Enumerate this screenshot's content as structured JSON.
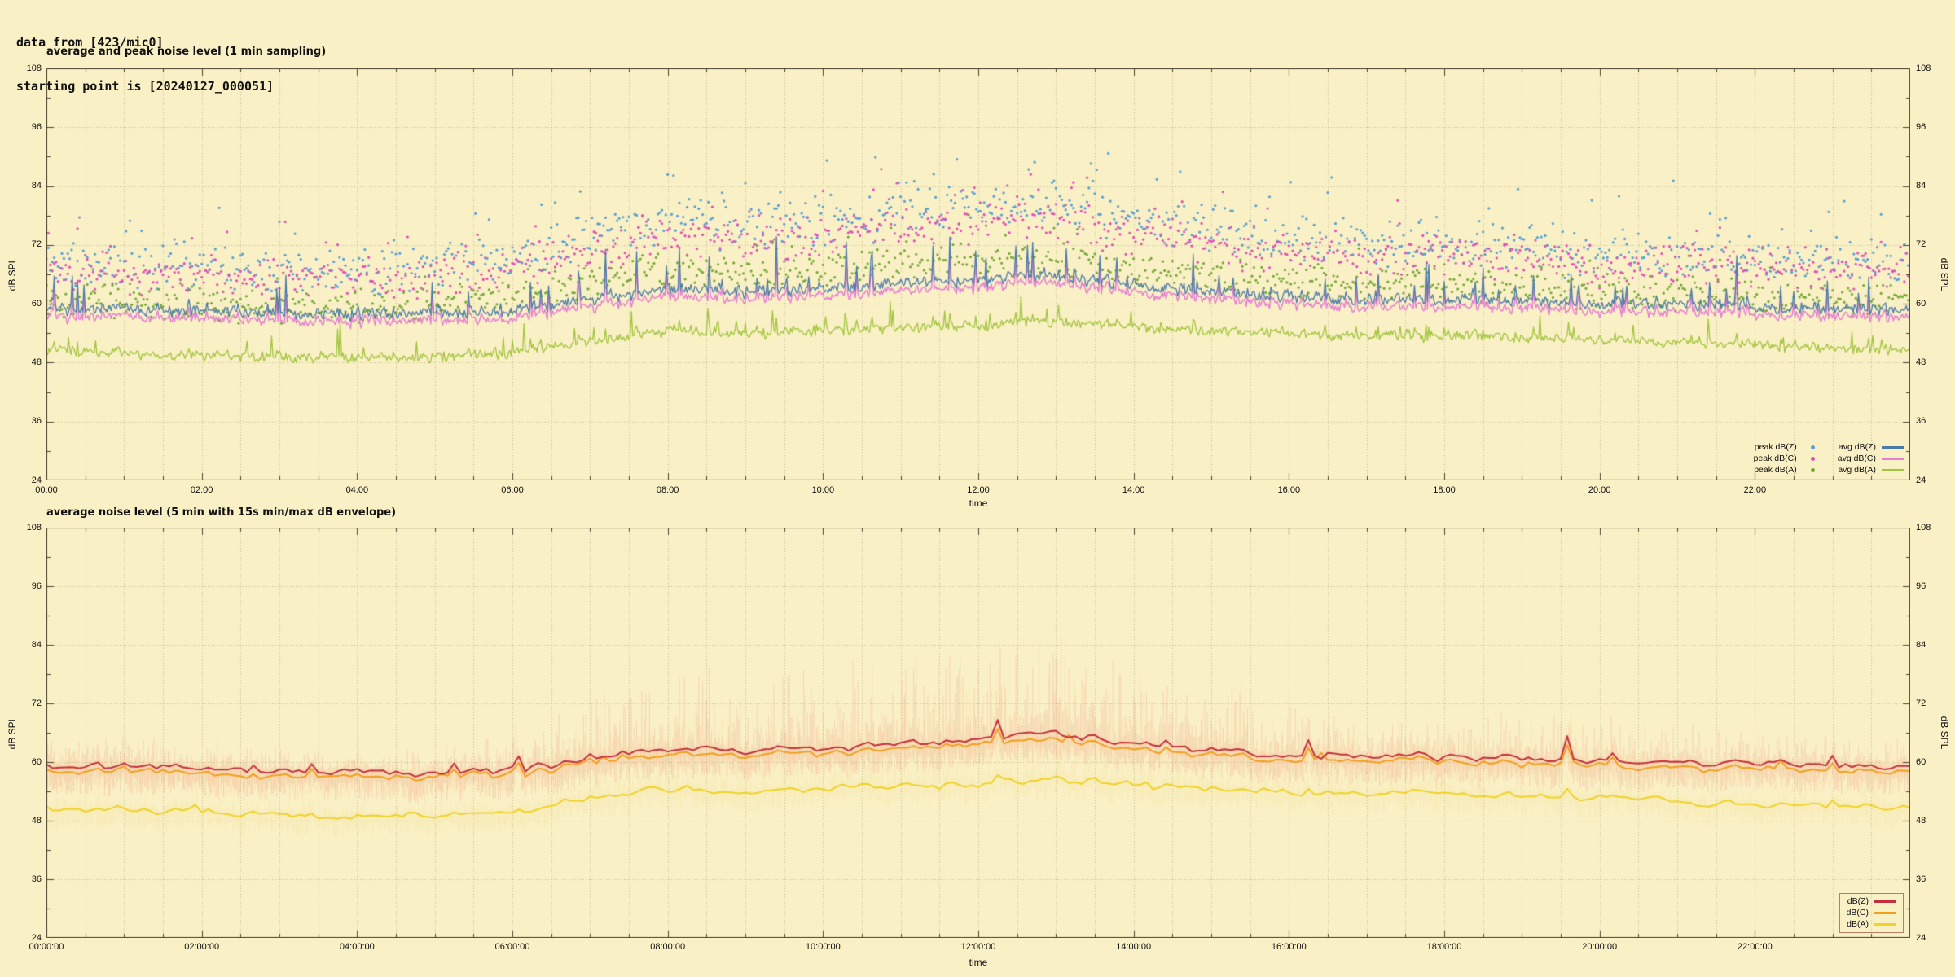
{
  "header": {
    "line1": "data from [423/mic0]",
    "line2": "starting point is [20240127_000051]"
  },
  "colors": {
    "background": "#faf0c6",
    "grid": "#8a7f58",
    "frame": "#4a4430",
    "text": "#111111"
  },
  "chart_data": [
    {
      "type": "line+scatter",
      "title": "average and peak noise level (1 min sampling)",
      "xlabel": "time",
      "ylabel": "dB SPL",
      "ylabel_right": "dB SPL",
      "ylim": [
        24,
        108
      ],
      "yticks": [
        24,
        36,
        48,
        60,
        72,
        84,
        96,
        108
      ],
      "x_range_hours": [
        0,
        24
      ],
      "xtick_hours": [
        0,
        2,
        4,
        6,
        8,
        10,
        12,
        14,
        16,
        18,
        20,
        22
      ],
      "xtick_labels": [
        "00:00",
        "02:00",
        "04:00",
        "06:00",
        "08:00",
        "10:00",
        "12:00",
        "14:00",
        "16:00",
        "18:00",
        "20:00",
        "22:00"
      ],
      "grid_minor_minutes": 30,
      "grid": "dotted",
      "legend_position": "bottom-right",
      "legend_boxed": false,
      "series": [
        {
          "name": "peak dB(Z)",
          "kind": "scatter",
          "color": "#56a0d3",
          "seed": 11,
          "step_min": 1.5,
          "spread": 5.5,
          "spike_p": 0.1,
          "spike_amp": 12,
          "base": [
            69,
            68,
            67.5,
            67,
            67,
            67.5,
            69,
            74,
            77,
            76,
            77,
            78,
            80,
            80,
            77,
            75,
            73,
            72,
            72,
            71,
            70,
            70,
            69.5,
            69,
            69
          ]
        },
        {
          "name": "peak dB(C)",
          "kind": "scatter",
          "color": "#e14fb6",
          "seed": 12,
          "step_min": 1.5,
          "spread": 5,
          "spike_p": 0.08,
          "spike_amp": 10,
          "base": [
            67,
            66,
            65.5,
            65,
            65,
            65.5,
            67,
            71,
            74,
            73,
            74,
            75,
            77,
            77,
            74,
            72,
            70.5,
            70,
            70,
            69,
            68,
            68,
            67.5,
            67,
            67
          ]
        },
        {
          "name": "peak dB(A)",
          "kind": "scatter",
          "color": "#76a837",
          "seed": 13,
          "step_min": 1.5,
          "spread": 4,
          "spike_p": 0.05,
          "spike_amp": 7,
          "base": [
            61,
            60.5,
            60,
            59.5,
            59.5,
            60,
            61,
            64.5,
            67,
            66,
            67,
            68,
            69,
            69,
            67,
            65.5,
            64.5,
            64,
            64,
            63,
            62.5,
            62,
            61.5,
            61,
            61
          ]
        },
        {
          "name": "avg dB(A)",
          "kind": "line",
          "color": "#a0c43c",
          "seed": 23,
          "step_min": 1,
          "ar": 0.3,
          "sigma": 1.2,
          "spike_p": 0.05,
          "spike_amp": 7,
          "follow": "avg dB(Z)",
          "follow_f": 0.25,
          "width": 1.3,
          "base": [
            50.5,
            50,
            49.5,
            49,
            49,
            49,
            50,
            52.5,
            54.5,
            54,
            54.5,
            55,
            55.5,
            56.5,
            55,
            54.5,
            54,
            53.5,
            53.5,
            53,
            52.5,
            52,
            51.5,
            51,
            50.5
          ]
        },
        {
          "name": "avg dB(C)",
          "kind": "line",
          "color": "#e57fd2",
          "seed": 22,
          "step_min": 1,
          "ar": 0.2,
          "sigma": 0.55,
          "spike_p": 0,
          "spike_amp": 0,
          "follow": "avg dB(Z)",
          "follow_f": 0.85,
          "width": 1.5,
          "base": [
            57.5,
            57.5,
            57,
            56.5,
            56.5,
            56.5,
            57,
            59.5,
            61.5,
            61,
            61.5,
            62.5,
            63.5,
            64.5,
            62,
            61,
            60,
            59.5,
            59.5,
            59,
            58.5,
            58.5,
            58,
            57.5,
            57.5
          ]
        },
        {
          "name": "avg dB(Z)",
          "kind": "line",
          "color": "#4a7aa8",
          "seed": 21,
          "step_min": 1,
          "ar": 0.3,
          "sigma": 1.5,
          "spike_p": 0.1,
          "spike_amp": 12,
          "width": 1.3,
          "base": [
            59,
            59,
            58.5,
            58,
            58,
            58,
            58.5,
            61,
            63,
            62.5,
            63,
            64,
            65,
            66,
            63.5,
            62.5,
            61.5,
            61,
            61,
            60.5,
            60,
            60,
            59.5,
            59,
            59
          ]
        }
      ],
      "legend_columns": [
        {
          "entries": [
            {
              "label": "peak dB(Z)",
              "swatch": "dot",
              "color": "#56a0d3"
            },
            {
              "label": "peak dB(C)",
              "swatch": "dot",
              "color": "#e14fb6"
            },
            {
              "label": "peak dB(A)",
              "swatch": "dot",
              "color": "#76a837"
            }
          ]
        },
        {
          "entries": [
            {
              "label": "avg dB(Z)",
              "swatch": "line",
              "color": "#4a7aa8"
            },
            {
              "label": "avg dB(C)",
              "swatch": "line",
              "color": "#e57fd2"
            },
            {
              "label": "avg dB(A)",
              "swatch": "line",
              "color": "#a0c43c"
            }
          ]
        }
      ]
    },
    {
      "type": "line+envelope",
      "title": "average noise level (5 min with 15s min/max dB envelope)",
      "xlabel": "time",
      "ylabel": "dB SPL",
      "ylabel_right": "dB SPL",
      "ylim": [
        24,
        108
      ],
      "yticks": [
        24,
        36,
        48,
        60,
        72,
        84,
        96,
        108
      ],
      "x_range_hours": [
        0,
        24
      ],
      "xtick_hours": [
        0,
        2,
        4,
        6,
        8,
        10,
        12,
        14,
        16,
        18,
        20,
        22
      ],
      "xtick_labels": [
        "00:00:00",
        "02:00:00",
        "04:00:00",
        "06:00:00",
        "08:00:00",
        "10:00:00",
        "12:00:00",
        "14:00:00",
        "16:00:00",
        "18:00:00",
        "20:00:00",
        "22:00:00"
      ],
      "grid_minor_minutes": 30,
      "grid": "dotted",
      "legend_position": "bottom-right",
      "legend_boxed": true,
      "series": [
        {
          "name": "dB(A)",
          "kind": "line",
          "color": "#eed227",
          "seed": 33,
          "step_min": 5,
          "ar": 0.55,
          "sigma": 0.8,
          "spike_p": 0.04,
          "spike_amp": 3,
          "follow": "dB(Z)",
          "follow_f": 0.35,
          "width": 2,
          "base": [
            50.5,
            50,
            49.5,
            49,
            49,
            49,
            50,
            52.5,
            54.5,
            54,
            54.5,
            55,
            55.5,
            56.5,
            55,
            54.5,
            54,
            53.5,
            53.5,
            53,
            52.5,
            52,
            51.5,
            51,
            50.5
          ],
          "envelope": {
            "extra": [
              3,
              3,
              3,
              3,
              3,
              3,
              3,
              5,
              6,
              6,
              6,
              7,
              7,
              7,
              6,
              5,
              4,
              4,
              4,
              4,
              4,
              3,
              3,
              3,
              3
            ],
            "min_depth": 3.5,
            "color": "#e8d052",
            "alpha": 0.14
          }
        },
        {
          "name": "dB(C)",
          "kind": "line",
          "color": "#f29e1f",
          "seed": 32,
          "step_min": 5,
          "ar": 0.5,
          "sigma": 0.5,
          "spike_p": 0.03,
          "spike_amp": 3,
          "follow": "dB(Z)",
          "follow_f": 0.8,
          "width": 2,
          "base": [
            58,
            58,
            57.5,
            57,
            57,
            57,
            57.5,
            60,
            62,
            61.5,
            62,
            63,
            64,
            65,
            62.5,
            61.5,
            60.5,
            60,
            60,
            59.5,
            59,
            59,
            58.5,
            58,
            58
          ],
          "envelope": {
            "extra": [
              4,
              4,
              3,
              3,
              3,
              3,
              4,
              7,
              9,
              8,
              9,
              10,
              11,
              11,
              9,
              8,
              6,
              5,
              5,
              5,
              5,
              4,
              4,
              4,
              4
            ],
            "min_depth": 4,
            "color": "#f0a868",
            "alpha": 0.16
          }
        },
        {
          "name": "dB(Z)",
          "kind": "line",
          "color": "#c5303c",
          "seed": 31,
          "step_min": 5,
          "ar": 0.55,
          "sigma": 1.0,
          "spike_p": 0.05,
          "spike_amp": 5,
          "width": 2,
          "base": [
            59,
            59,
            58.5,
            58,
            58,
            58,
            58.5,
            61,
            63,
            62.5,
            63,
            64,
            65,
            66,
            63.5,
            62.5,
            61.5,
            61,
            61,
            60.5,
            60,
            60,
            59.5,
            59,
            59
          ],
          "envelope": {
            "extra": [
              7,
              7,
              6,
              6,
              6,
              6,
              8,
              14,
              18,
              16,
              18,
              20,
              22,
              22,
              18,
              15,
              12,
              10,
              10,
              10,
              9,
              8,
              8,
              7,
              7
            ],
            "min_depth": 5,
            "color": "#e06a5f",
            "alpha": 0.2
          }
        }
      ],
      "legend_columns": [
        {
          "entries": [
            {
              "label": "dB(Z)",
              "swatch": "line",
              "color": "#c5303c"
            },
            {
              "label": "dB(C)",
              "swatch": "line",
              "color": "#f29e1f"
            },
            {
              "label": "dB(A)",
              "swatch": "line",
              "color": "#eed227"
            }
          ]
        }
      ]
    }
  ]
}
